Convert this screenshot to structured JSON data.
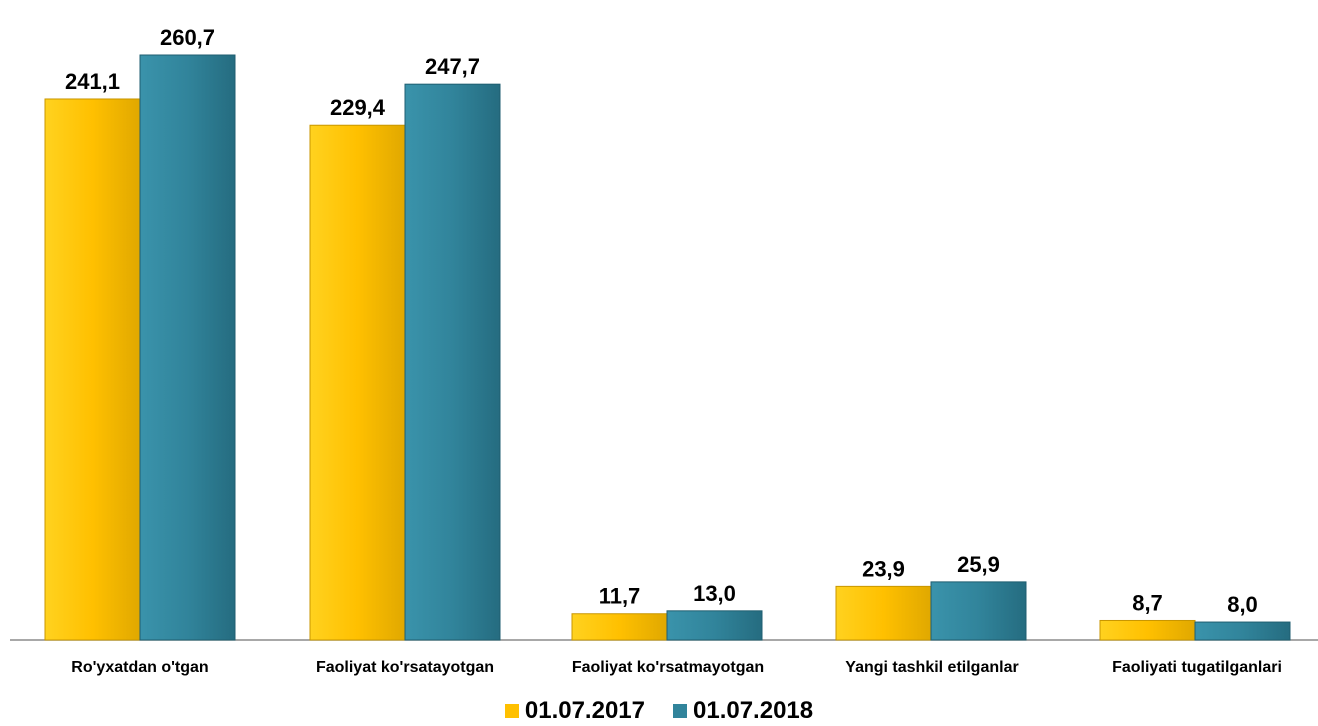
{
  "chart_data": {
    "type": "bar",
    "categories": [
      "Ro'yxatdan o'tgan",
      "Faoliyat ko'rsatayotgan",
      "Faoliyat ko'rsatmayotgan",
      "Yangi tashkil etilganlar",
      "Faoliyati tugatilganlari"
    ],
    "series": [
      {
        "name": "01.07.2017",
        "color": "#FFC000",
        "values": [
          241.1,
          229.4,
          11.7,
          23.9,
          8.7
        ],
        "labels": [
          "241,1",
          "229,4",
          "11,7",
          "23,9",
          "8,7"
        ]
      },
      {
        "name": "01.07.2018",
        "color": "#31849B",
        "values": [
          260.7,
          247.7,
          13.0,
          25.9,
          8.0
        ],
        "labels": [
          "260,7",
          "247,7",
          "13,0",
          "25,9",
          "8,0"
        ]
      }
    ],
    "ylim": [
      0,
      270
    ],
    "grid": false,
    "legend_position": "bottom"
  }
}
